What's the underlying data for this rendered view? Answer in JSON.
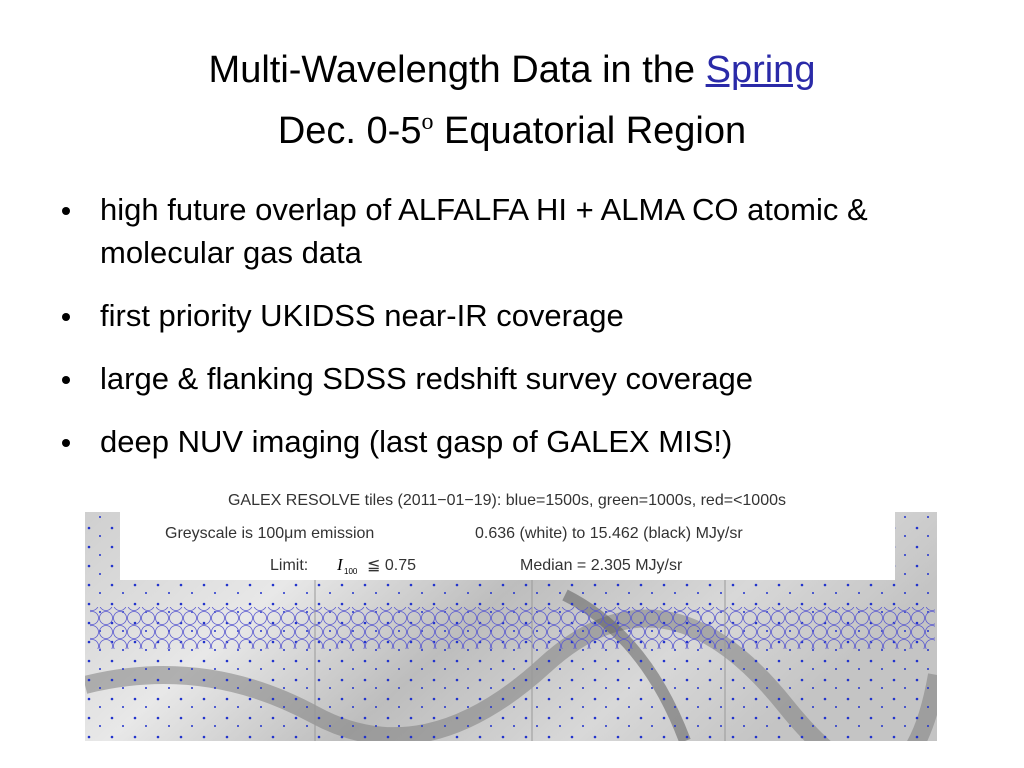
{
  "title": {
    "line1": "Multi-Wavelength Data in the",
    "link": "Spring",
    "line2": "Dec. 0-5",
    "degree": "o",
    "line2_rest": "Equatorial Region"
  },
  "bullets": [
    "high future overlap of ALFALFA HI + ALMA CO atomic & molecular gas data",
    "first priority UKIDSS near-IR coverage",
    "large & flanking SDSS redshift survey coverage",
    "deep NUV imaging  (last gasp of GALEX MIS!)"
  ],
  "figure": {
    "caption1": "GALEX RESOLVE tiles (2011−01−19): blue=1500s, green=1000s, red=<1000s",
    "caption2a": "Greyscale is 100μm emission",
    "caption2b": "0.636 (white) to 15.462 (black) MJy/sr",
    "limit_label": "Limit:",
    "symbol": "I",
    "subscript": "100",
    "relation": "≦ 0.75",
    "median": "Median = 2.305 MJy/sr"
  }
}
